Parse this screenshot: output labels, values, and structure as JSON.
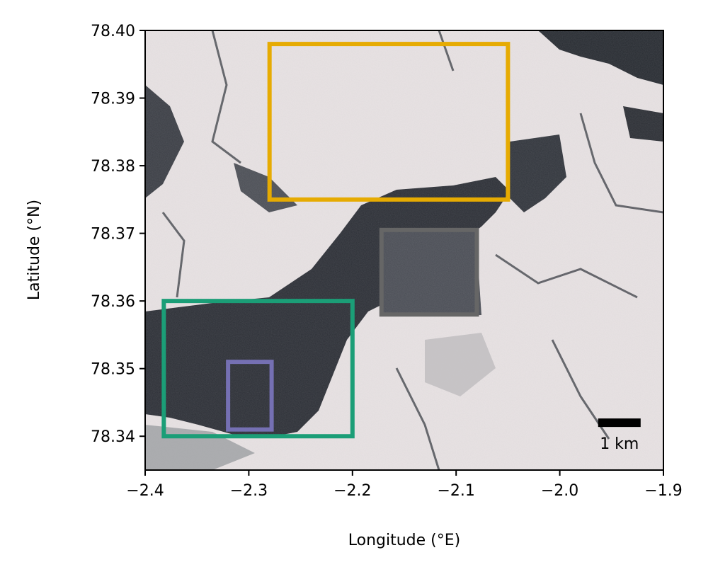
{
  "chart_data": {
    "type": "map",
    "title": "",
    "xlabel": "Longitude (°E)",
    "ylabel": "Latitude (°N)",
    "xlim": [
      -2.4,
      -1.9
    ],
    "ylim": [
      78.335,
      78.4
    ],
    "x_ticks": [
      -2.4,
      -2.3,
      -2.2,
      -2.1,
      -2.0,
      -1.9
    ],
    "x_tick_labels": [
      "−2.4",
      "−2.3",
      "−2.2",
      "−2.1",
      "−2.0",
      "−1.9"
    ],
    "y_ticks": [
      78.34,
      78.35,
      78.36,
      78.37,
      78.38,
      78.39,
      78.4
    ],
    "y_tick_labels": [
      "78.34",
      "78.35",
      "78.36",
      "78.37",
      "78.38",
      "78.39",
      "78.40"
    ],
    "grid": false,
    "background": "satellite image of sea ice floes and open water",
    "boxes": [
      {
        "color": "#e6ab02",
        "lon": [
          -2.28,
          -2.05
        ],
        "lat": [
          78.375,
          78.398
        ]
      },
      {
        "color": "#666666",
        "lon": [
          -2.172,
          -2.08
        ],
        "lat": [
          78.358,
          78.3705
        ]
      },
      {
        "color": "#1b9e77",
        "lon": [
          -2.382,
          -2.2
        ],
        "lat": [
          78.34,
          78.36
        ]
      },
      {
        "color": "#7570b3",
        "lon": [
          -2.32,
          -2.278
        ],
        "lat": [
          78.341,
          78.351
        ]
      }
    ],
    "scale_bar": {
      "label": "1 km",
      "lon": [
        -1.963,
        -1.922
      ],
      "lat": 78.342
    }
  }
}
